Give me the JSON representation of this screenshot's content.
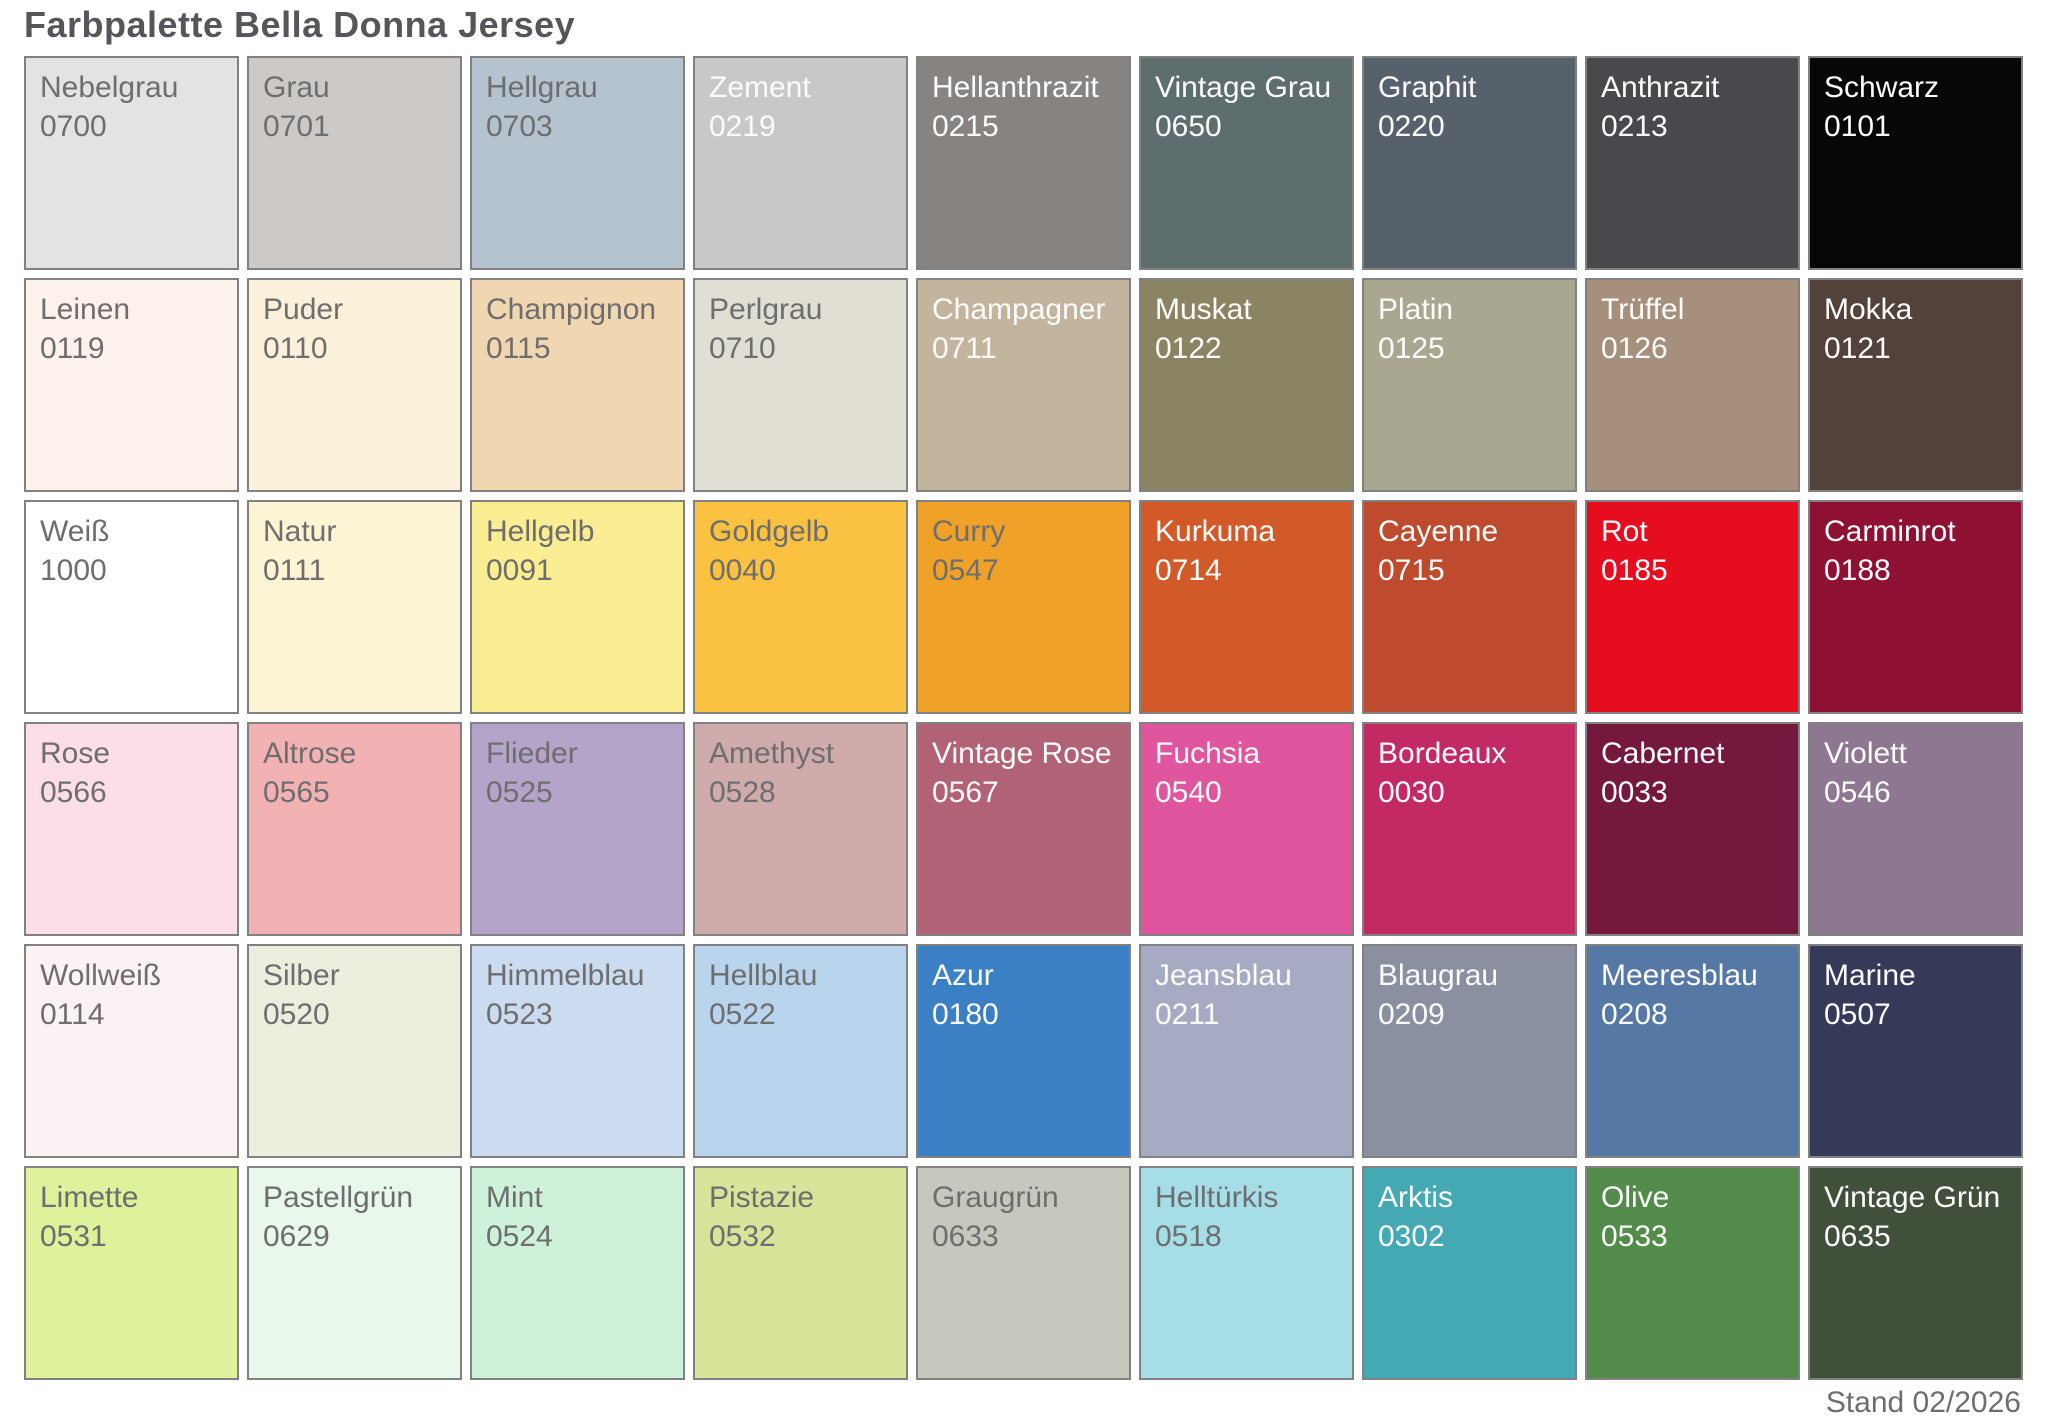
{
  "title": "Farbpalette Bella Donna Jersey",
  "footer": "Stand 02/2026",
  "style": {
    "border_color": "#818181",
    "dark_label_color": "#6e6e6e",
    "light_label_color": "#fbfbfb",
    "title_color": "#56565a"
  },
  "chart_data": {
    "type": "table",
    "title": "Farbpalette Bella Donna Jersey",
    "rows": 6,
    "cols": 9,
    "legend_position": "none",
    "swatches": [
      {
        "name": "Nebelgrau",
        "code": "0700",
        "hex": "#e4e3e1",
        "label": "dark"
      },
      {
        "name": "Grau",
        "code": "0701",
        "hex": "#cdc9c7",
        "label": "dark"
      },
      {
        "name": "Hellgrau",
        "code": "0703",
        "hex": "#b5c3cf",
        "label": "dark"
      },
      {
        "name": "Zement",
        "code": "0219",
        "hex": "#c7c8c8",
        "label": "light"
      },
      {
        "name": "Hellanthrazit",
        "code": "0215",
        "hex": "#868381",
        "label": "light"
      },
      {
        "name": "Vintage Grau",
        "code": "0650",
        "hex": "#5e6d6d",
        "label": "light"
      },
      {
        "name": "Graphit",
        "code": "0220",
        "hex": "#57616b",
        "label": "light"
      },
      {
        "name": "Anthrazit",
        "code": "0213",
        "hex": "#4a474d",
        "label": "light"
      },
      {
        "name": "Schwarz",
        "code": "0101",
        "hex": "#070709",
        "label": "light"
      },
      {
        "name": "Leinen",
        "code": "0119",
        "hex": "#fdf1ec",
        "label": "dark"
      },
      {
        "name": "Puder",
        "code": "0110",
        "hex": "#fbf0da",
        "label": "dark"
      },
      {
        "name": "Champignon",
        "code": "0115",
        "hex": "#f1d6b2",
        "label": "dark"
      },
      {
        "name": "Perlgrau",
        "code": "0710",
        "hex": "#e1ded3",
        "label": "dark"
      },
      {
        "name": "Champagner",
        "code": "0711",
        "hex": "#c3b59d",
        "label": "light"
      },
      {
        "name": "Muskat",
        "code": "0122",
        "hex": "#8b8462",
        "label": "light"
      },
      {
        "name": "Platin",
        "code": "0125",
        "hex": "#a9a78f",
        "label": "light"
      },
      {
        "name": "Trüffel",
        "code": "0126",
        "hex": "#a68f7b",
        "label": "light"
      },
      {
        "name": "Mokka",
        "code": "0121",
        "hex": "#52423a",
        "label": "light"
      },
      {
        "name": "Weiß",
        "code": "1000",
        "hex": "#ffffff",
        "label": "dark"
      },
      {
        "name": "Natur",
        "code": "0111",
        "hex": "#fcf4d3",
        "label": "dark"
      },
      {
        "name": "Hellgelb",
        "code": "0091",
        "hex": "#fbee92",
        "label": "dark"
      },
      {
        "name": "Goldgelb",
        "code": "0040",
        "hex": "#fbc140",
        "label": "dark"
      },
      {
        "name": "Curry",
        "code": "0547",
        "hex": "#f0a128",
        "label": "dark"
      },
      {
        "name": "Kurkuma",
        "code": "0714",
        "hex": "#d15a28",
        "label": "light"
      },
      {
        "name": "Cayenne",
        "code": "0715",
        "hex": "#bf4b2e",
        "label": "light"
      },
      {
        "name": "Rot",
        "code": "0185",
        "hex": "#e60d1f",
        "label": "light"
      },
      {
        "name": "Carminrot",
        "code": "0188",
        "hex": "#8e1032",
        "label": "light"
      },
      {
        "name": "Rose",
        "code": "0566",
        "hex": "#fbdee7",
        "label": "dark"
      },
      {
        "name": "Altrose",
        "code": "0565",
        "hex": "#f2b2b3",
        "label": "dark"
      },
      {
        "name": "Flieder",
        "code": "0525",
        "hex": "#b4a4c9",
        "label": "dark"
      },
      {
        "name": "Amethyst",
        "code": "0528",
        "hex": "#cfabac",
        "label": "dark"
      },
      {
        "name": "Vintage Rose",
        "code": "0567",
        "hex": "#b16276",
        "label": "light"
      },
      {
        "name": "Fuchsia",
        "code": "0540",
        "hex": "#e0569e",
        "label": "light"
      },
      {
        "name": "Bordeaux",
        "code": "0030",
        "hex": "#c32a64",
        "label": "light"
      },
      {
        "name": "Cabernet",
        "code": "0033",
        "hex": "#74183d",
        "label": "light"
      },
      {
        "name": "Violett",
        "code": "0546",
        "hex": "#8d7791",
        "label": "light"
      },
      {
        "name": "Wollweiß",
        "code": "0114",
        "hex": "#faf2f3",
        "label": "dark"
      },
      {
        "name": "Silber",
        "code": "0520",
        "hex": "#eceede",
        "label": "dark"
      },
      {
        "name": "Himmelblau",
        "code": "0523",
        "hex": "#ccdcf0",
        "label": "dark"
      },
      {
        "name": "Hellblau",
        "code": "0522",
        "hex": "#b9d5ee",
        "label": "dark"
      },
      {
        "name": "Azur",
        "code": "0180",
        "hex": "#3b7fc4",
        "label": "light"
      },
      {
        "name": "Jeansblau",
        "code": "0211",
        "hex": "#a6abc3",
        "label": "light"
      },
      {
        "name": "Blaugrau",
        "code": "0209",
        "hex": "#8b90a1",
        "label": "light"
      },
      {
        "name": "Meeresblau",
        "code": "0208",
        "hex": "#5678a5",
        "label": "light"
      },
      {
        "name": "Marine",
        "code": "0507",
        "hex": "#353a58",
        "label": "light"
      },
      {
        "name": "Limette",
        "code": "0531",
        "hex": "#def29c",
        "label": "dark"
      },
      {
        "name": "Pastellgrün",
        "code": "0629",
        "hex": "#e8f8eb",
        "label": "dark"
      },
      {
        "name": "Mint",
        "code": "0524",
        "hex": "#cdf2d9",
        "label": "dark"
      },
      {
        "name": "Pistazie",
        "code": "0532",
        "hex": "#d7e59b",
        "label": "dark"
      },
      {
        "name": "Graugrün",
        "code": "0633",
        "hex": "#c6c7bd",
        "label": "dark"
      },
      {
        "name": "Helltürkis",
        "code": "0518",
        "hex": "#a6dee8",
        "label": "dark"
      },
      {
        "name": "Arktis",
        "code": "0302",
        "hex": "#44a9b3",
        "label": "light"
      },
      {
        "name": "Olive",
        "code": "0533",
        "hex": "#538b4b",
        "label": "light"
      },
      {
        "name": "Vintage Grün",
        "code": "0635",
        "hex": "#41503b",
        "label": "light"
      }
    ]
  }
}
